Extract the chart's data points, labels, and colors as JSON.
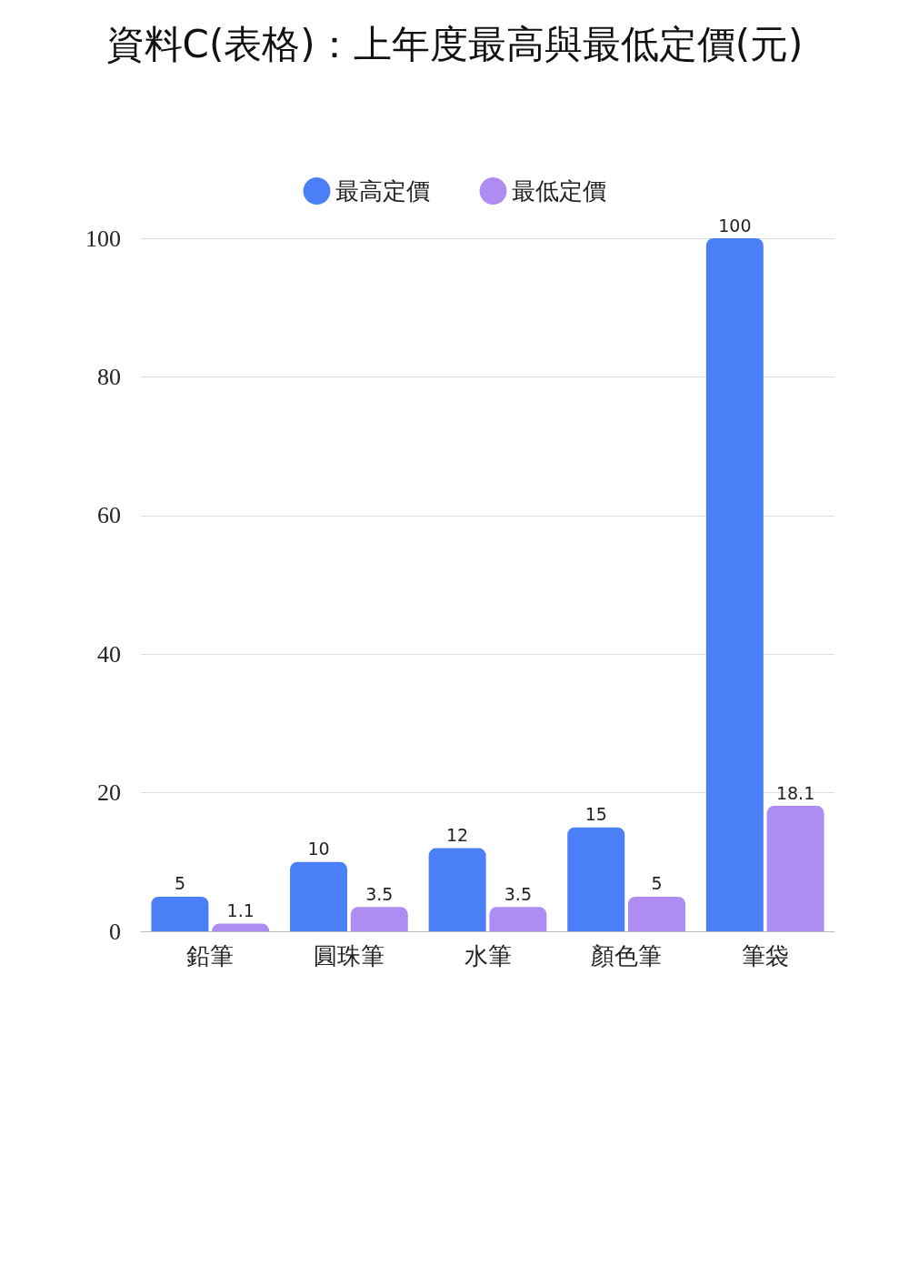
{
  "chart_data": {
    "type": "bar",
    "title": "資料C(表格)：上年度最高與最低定價(元)",
    "categories": [
      "鉛筆",
      "圓珠筆",
      "水筆",
      "顏色筆",
      "筆袋"
    ],
    "series": [
      {
        "name": "最高定價",
        "color": "#4a7ff7",
        "values": [
          5,
          10,
          12,
          15,
          100
        ]
      },
      {
        "name": "最低定價",
        "color": "#ae8cf2",
        "values": [
          1.1,
          3.5,
          3.5,
          5,
          18.1
        ]
      }
    ],
    "ylim": [
      0,
      100
    ],
    "yticks": [
      0,
      20,
      40,
      60,
      80,
      100
    ],
    "grid": "y",
    "legend": "top",
    "data_labels": true
  }
}
